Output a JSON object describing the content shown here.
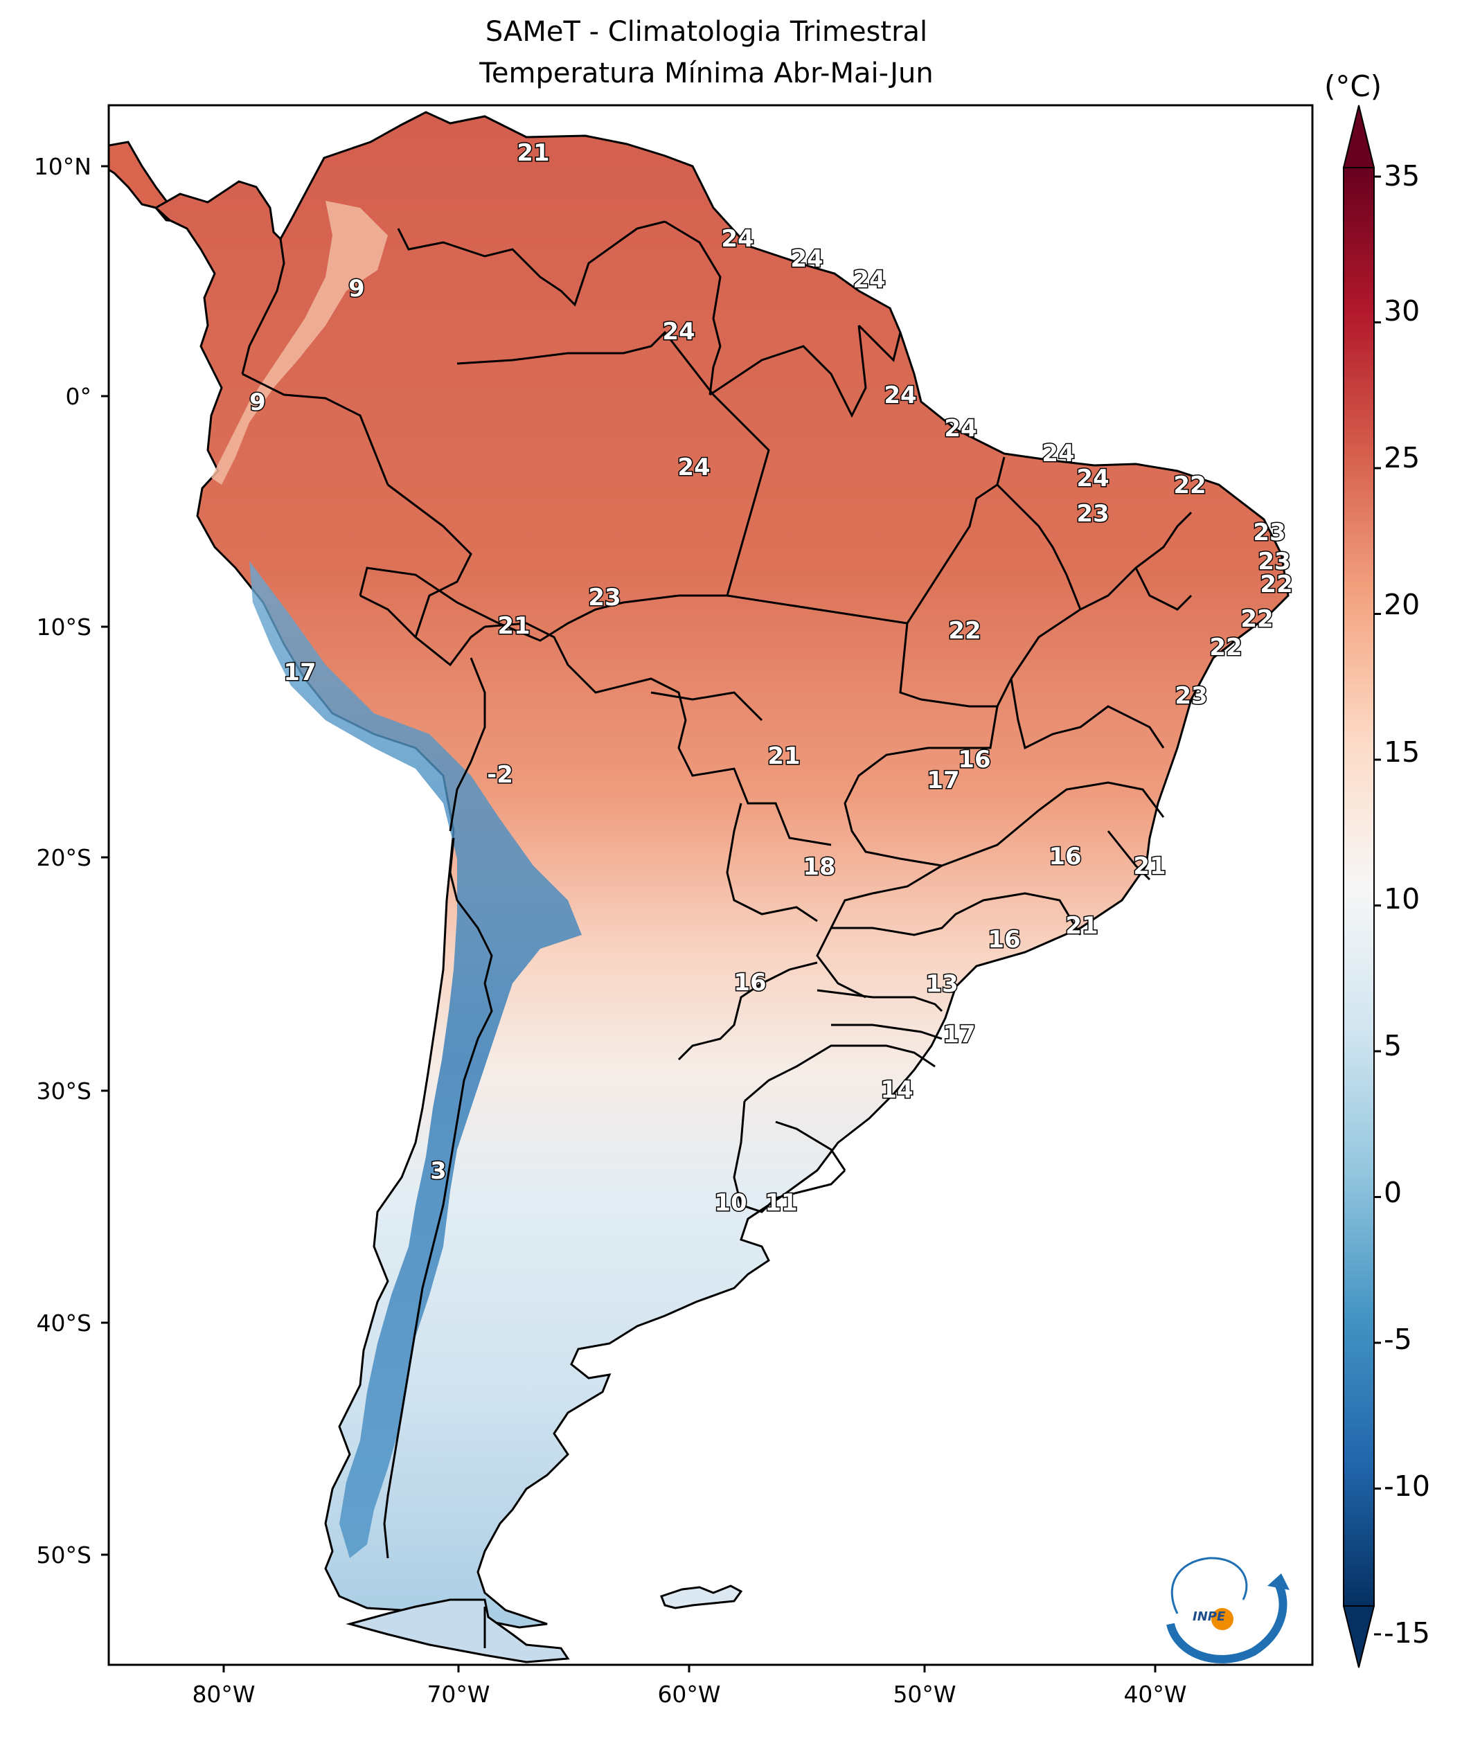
{
  "title": {
    "line1": "SAMeT - Climatologia Trimestral",
    "line2": "Temperatura Mínima   Abr-Mai-Jun"
  },
  "colorbar": {
    "unit": "(°C)",
    "min": -15,
    "max": 35,
    "ticks": [
      "35",
      "30",
      "25",
      "20",
      "15",
      "10",
      "5",
      "0",
      "-5",
      "-10",
      "-15"
    ],
    "colormap": "RdBu_r",
    "colors": [
      "#053061",
      "#2166ac",
      "#4393c3",
      "#92c5de",
      "#d1e5f0",
      "#f7f7f7",
      "#fddbc7",
      "#f4a582",
      "#d6604d",
      "#b2182b",
      "#67001f"
    ]
  },
  "axes": {
    "lat_labels": [
      "10°N",
      "0°",
      "10°S",
      "20°S",
      "30°S",
      "40°S",
      "50°S"
    ],
    "lon_labels": [
      "80°W",
      "70°W",
      "60°W",
      "50°W",
      "40°W"
    ]
  },
  "map_labels": [
    "21",
    "24",
    "24",
    "24",
    "24",
    "9",
    "24",
    "9",
    "24",
    "24",
    "24",
    "24",
    "22",
    "23",
    "23",
    "23",
    "22",
    "22",
    "23",
    "22",
    "21",
    "22",
    "17",
    "23",
    "16",
    "17",
    "21",
    "-2",
    "16",
    "18",
    "21",
    "21",
    "16",
    "16",
    "13",
    "17",
    "14",
    "3",
    "10",
    "11"
  ],
  "logo": {
    "text": "INPE"
  }
}
